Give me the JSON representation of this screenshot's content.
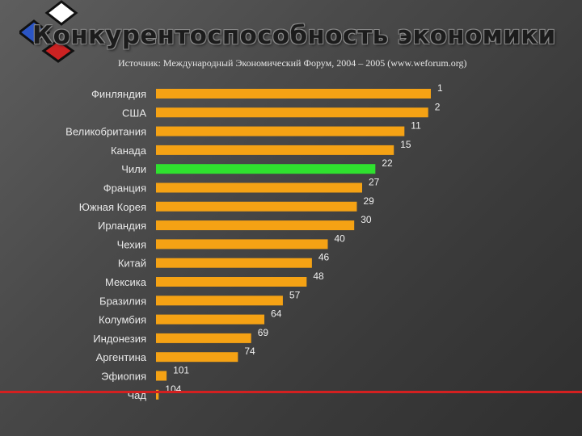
{
  "title": "Конкурентоспособность экономики",
  "subtitle": "Источник: Международный Экономический Форум, 2004 – 2005 (www.weforum.org)",
  "colors": {
    "bar": "#f5a214",
    "highlight": "#2fe12f",
    "label": "#e8e8e8",
    "value": "#f0f0f0",
    "accent_line": "#d42020"
  },
  "chart_data": {
    "type": "bar",
    "orientation": "horizontal",
    "categories": [
      "Финляндия",
      "США",
      "Великобритания",
      "Канада",
      "Чили",
      "Франция",
      "Южная Корея",
      "Ирландия",
      "Чехия",
      "Китай",
      "Мексика",
      "Бразилия",
      "Колумбия",
      "Индонезия",
      "Аргентина",
      "Эфиопия",
      "Чад"
    ],
    "values": [
      1,
      2,
      11,
      15,
      22,
      27,
      29,
      30,
      40,
      46,
      48,
      57,
      64,
      69,
      74,
      101,
      104
    ],
    "highlight": "Чили",
    "title": "Конкурентоспособность экономики",
    "xlabel": "",
    "ylabel": ""
  }
}
